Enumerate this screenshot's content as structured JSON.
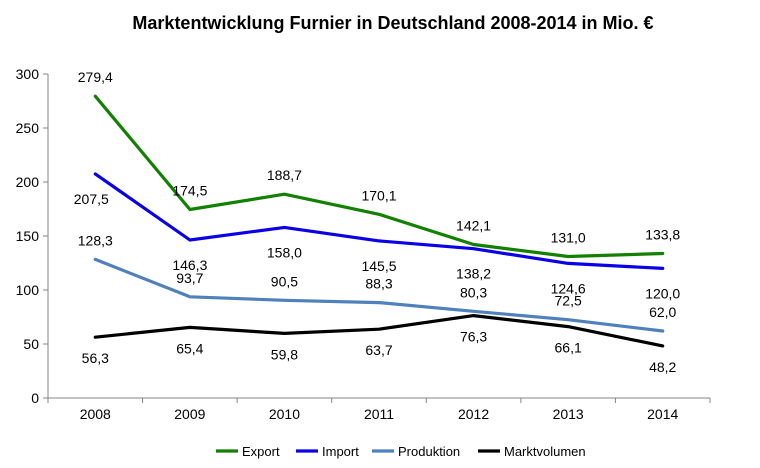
{
  "chart_data": {
    "type": "line",
    "title": "Marktentwicklung Furnier in Deutschland 2008-2014 in Mio. €",
    "xlabel": "",
    "ylabel": "",
    "categories": [
      "2008",
      "2009",
      "2010",
      "2011",
      "2012",
      "2013",
      "2014"
    ],
    "ylim": [
      0,
      300
    ],
    "yticks": [
      "0",
      "50",
      "100",
      "150",
      "200",
      "250",
      "300"
    ],
    "grid": false,
    "legend_position": "bottom",
    "series": [
      {
        "name": "Export",
        "color": "#128000",
        "values": [
          279.4,
          174.5,
          188.7,
          170.1,
          142.1,
          131.0,
          133.8
        ],
        "labels": [
          "279,4",
          "174,5",
          "188,7",
          "170,1",
          "142,1",
          "131,0",
          "133,8"
        ]
      },
      {
        "name": "Import",
        "color": "#0a00e6",
        "values": [
          207.5,
          146.3,
          158.0,
          145.5,
          138.2,
          124.6,
          120.0
        ],
        "labels": [
          "207,5",
          "146,3",
          "158,0",
          "145,5",
          "138,2",
          "124,6",
          "120,0"
        ]
      },
      {
        "name": "Produktion",
        "color": "#4f81bd",
        "values": [
          128.3,
          93.7,
          90.5,
          88.3,
          80.3,
          72.5,
          62.0
        ],
        "labels": [
          "128,3",
          "93,7",
          "90,5",
          "88,3",
          "80,3",
          "72,5",
          "62,0"
        ]
      },
      {
        "name": "Marktvolumen",
        "color": "#000000",
        "values": [
          56.3,
          65.4,
          59.8,
          63.7,
          76.3,
          66.1,
          48.2
        ],
        "labels": [
          "56,3",
          "65,4",
          "59,8",
          "63,7",
          "76,3",
          "66,1",
          "48,2"
        ]
      }
    ]
  }
}
